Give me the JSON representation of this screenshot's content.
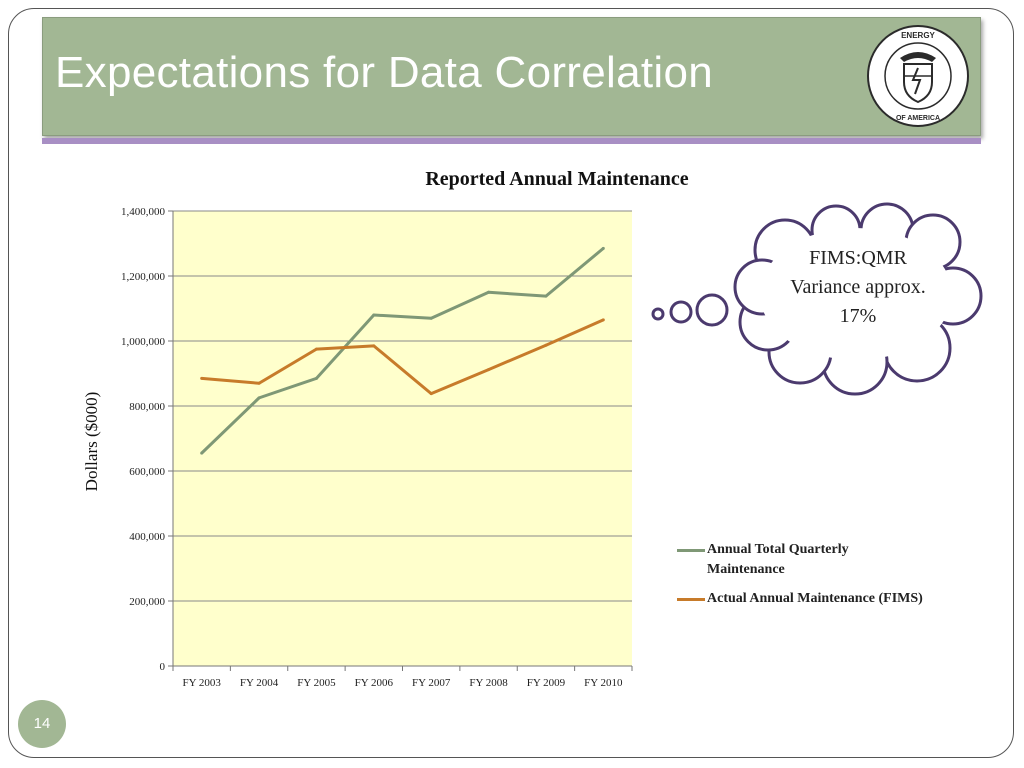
{
  "slide": {
    "title": "Expectations for Data Correlation",
    "page_number": "14",
    "seal_label": "DEPARTMENT OF ENERGY · UNITED STATES OF AMERICA",
    "callout_lines": [
      "FIMS:QMR",
      "Variance approx.",
      "17%"
    ]
  },
  "colors": {
    "title_bar": "#a2b794",
    "accent_line": "#a88fc4",
    "plot_background": "#ffffcc",
    "series_total": "#7f9876",
    "series_fims": "#c77b2a",
    "cloud_outline": "#4b3a6e"
  },
  "chart_data": {
    "type": "line",
    "title": "Reported Annual Maintenance",
    "xlabel": "",
    "ylabel": "Dollars ($000)",
    "categories": [
      "FY 2003",
      "FY 2004",
      "FY 2005",
      "FY 2006",
      "FY 2007",
      "FY 2008",
      "FY 2009",
      "FY 2010"
    ],
    "ylim": [
      0,
      1400000
    ],
    "yticks": [
      0,
      200000,
      400000,
      600000,
      800000,
      1000000,
      1200000,
      1400000
    ],
    "ytick_labels": [
      "0",
      "200,000",
      "400,000",
      "600,000",
      "800,000",
      "1,000,000",
      "1,200,000",
      "1,400,000"
    ],
    "grid": true,
    "legend_position": "right",
    "series": [
      {
        "name": "Annual Total Quarterly Maintenance",
        "color": "#7f9876",
        "values": [
          655000,
          825000,
          885000,
          1080000,
          1070000,
          1150000,
          1138000,
          1285000
        ]
      },
      {
        "name": "Actual Annual Maintenance (FIMS)",
        "color": "#c77b2a",
        "values": [
          885000,
          870000,
          975000,
          985000,
          838000,
          912000,
          987000,
          1065000
        ]
      }
    ]
  }
}
